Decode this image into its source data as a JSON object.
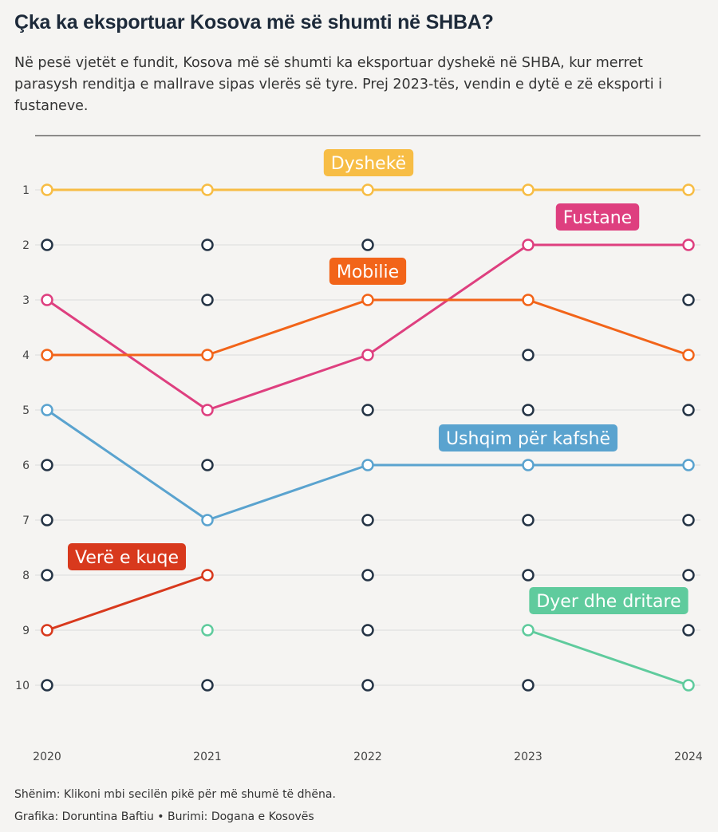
{
  "header": {
    "title": "Çka ka eksportuar Kosova më së shumti në SHBA?",
    "subtitle": "Në pesë vjetët e fundit, Kosova më së shumti ka eksportuar dyshekë në SHBA, kur merret parasysh renditja e mallrave sipas vlerës së tyre. Prej 2023-tës, vendin e dytë e zë eksporti i fustaneve."
  },
  "footer": {
    "note": "Shënim: Klikoni mbi secilën pikë për më shumë të dhëna.",
    "credit": "Grafika: Doruntina Baftiu • Burimi: Dogana e Kosovës"
  },
  "colors": {
    "background": "#f5f4f2",
    "default_dot": "#253445",
    "grid": "#dcdcdc"
  },
  "chart_data": {
    "type": "line",
    "x": [
      "2020",
      "2021",
      "2022",
      "2023",
      "2024"
    ],
    "y_ticks": [
      "1",
      "2",
      "3",
      "4",
      "5",
      "6",
      "7",
      "8",
      "9",
      "10"
    ],
    "ylim": [
      1,
      10
    ],
    "y_reversed": true,
    "grid": true,
    "series": [
      {
        "name": "Dyshekë",
        "color": "#f7bd45",
        "values": [
          1,
          1,
          1,
          1,
          1
        ]
      },
      {
        "name": "Fustane",
        "color": "#de3f7f",
        "values": [
          3,
          5,
          4,
          2,
          2
        ]
      },
      {
        "name": "Mobilie",
        "color": "#f26419",
        "values": [
          4,
          4,
          3,
          3,
          4
        ]
      },
      {
        "name": "Ushqim për kafshë",
        "color": "#5aa3cf",
        "values": [
          5,
          7,
          6,
          6,
          6
        ]
      },
      {
        "name": "Verë e kuqe",
        "color": "#d8391d",
        "values": [
          9,
          8,
          null,
          null,
          null
        ]
      },
      {
        "name": "Dyer dhe dritare",
        "color": "#5fcb9d",
        "values": [
          null,
          9,
          null,
          9,
          10
        ]
      }
    ]
  }
}
